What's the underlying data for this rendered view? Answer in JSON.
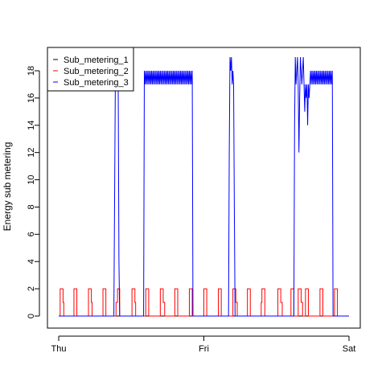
{
  "chart_data": {
    "type": "line",
    "title": "",
    "xlabel": "",
    "ylabel": "Energy sub metering",
    "x_ticks": [
      "Thu",
      "Fri",
      "Sat"
    ],
    "x_range_days": [
      0,
      2
    ],
    "ylim": [
      0,
      18
    ],
    "y_ticks": [
      0,
      2,
      4,
      6,
      8,
      10,
      12,
      14,
      16,
      18
    ],
    "grid": false,
    "legend_position": "top-left",
    "series": [
      {
        "name": "Sub_metering_1",
        "color": "#000000",
        "points": [
          [
            0,
            0
          ],
          [
            2,
            0
          ]
        ]
      },
      {
        "name": "Sub_metering_2",
        "color": "#ff0000",
        "points": [
          [
            0.0,
            0
          ],
          [
            0.01,
            0
          ],
          [
            0.01,
            2
          ],
          [
            0.03,
            2
          ],
          [
            0.03,
            1
          ],
          [
            0.035,
            1
          ],
          [
            0.035,
            0
          ],
          [
            0.105,
            0
          ],
          [
            0.105,
            2
          ],
          [
            0.125,
            2
          ],
          [
            0.125,
            0
          ],
          [
            0.205,
            0
          ],
          [
            0.205,
            2
          ],
          [
            0.225,
            2
          ],
          [
            0.225,
            1
          ],
          [
            0.23,
            1
          ],
          [
            0.23,
            0
          ],
          [
            0.305,
            0
          ],
          [
            0.305,
            2
          ],
          [
            0.325,
            2
          ],
          [
            0.325,
            0
          ],
          [
            0.395,
            0
          ],
          [
            0.395,
            1
          ],
          [
            0.405,
            1
          ],
          [
            0.405,
            2
          ],
          [
            0.42,
            2
          ],
          [
            0.42,
            0
          ],
          [
            0.505,
            0
          ],
          [
            0.505,
            2
          ],
          [
            0.525,
            2
          ],
          [
            0.525,
            1
          ],
          [
            0.53,
            1
          ],
          [
            0.53,
            0
          ],
          [
            0.6,
            0
          ],
          [
            0.6,
            2
          ],
          [
            0.62,
            2
          ],
          [
            0.62,
            0
          ],
          [
            0.7,
            0
          ],
          [
            0.7,
            2
          ],
          [
            0.72,
            2
          ],
          [
            0.72,
            1
          ],
          [
            0.73,
            1
          ],
          [
            0.73,
            0
          ],
          [
            0.8,
            0
          ],
          [
            0.8,
            2
          ],
          [
            0.82,
            2
          ],
          [
            0.82,
            0
          ],
          [
            0.9,
            0
          ],
          [
            0.9,
            2
          ],
          [
            0.92,
            2
          ],
          [
            0.92,
            0
          ],
          [
            1.0,
            0
          ],
          [
            1.0,
            2
          ],
          [
            1.02,
            2
          ],
          [
            1.02,
            0
          ],
          [
            1.1,
            0
          ],
          [
            1.1,
            2
          ],
          [
            1.12,
            2
          ],
          [
            1.12,
            0
          ],
          [
            1.2,
            0
          ],
          [
            1.2,
            2
          ],
          [
            1.22,
            2
          ],
          [
            1.22,
            1
          ],
          [
            1.23,
            1
          ],
          [
            1.23,
            0
          ],
          [
            1.3,
            0
          ],
          [
            1.3,
            2
          ],
          [
            1.32,
            2
          ],
          [
            1.32,
            0
          ],
          [
            1.395,
            0
          ],
          [
            1.395,
            1
          ],
          [
            1.4,
            1
          ],
          [
            1.4,
            2
          ],
          [
            1.42,
            2
          ],
          [
            1.42,
            0
          ],
          [
            1.51,
            0
          ],
          [
            1.51,
            2
          ],
          [
            1.53,
            2
          ],
          [
            1.53,
            1
          ],
          [
            1.54,
            1
          ],
          [
            1.54,
            0
          ],
          [
            1.6,
            0
          ],
          [
            1.6,
            2
          ],
          [
            1.62,
            2
          ],
          [
            1.62,
            0
          ],
          [
            1.65,
            0
          ],
          [
            1.65,
            2
          ],
          [
            1.67,
            2
          ],
          [
            1.67,
            1
          ],
          [
            1.68,
            1
          ],
          [
            1.68,
            0
          ],
          [
            1.7,
            0
          ],
          [
            1.7,
            2
          ],
          [
            1.72,
            2
          ],
          [
            1.72,
            0
          ],
          [
            1.8,
            0
          ],
          [
            1.8,
            2
          ],
          [
            1.82,
            2
          ],
          [
            1.82,
            0
          ],
          [
            1.9,
            0
          ],
          [
            1.9,
            2
          ],
          [
            1.92,
            2
          ],
          [
            1.92,
            0
          ],
          [
            2.0,
            0
          ]
        ]
      },
      {
        "name": "Sub_metering_3",
        "color": "#0000ff",
        "points": [
          [
            0.0,
            0
          ],
          [
            0.38,
            0
          ],
          [
            0.39,
            17
          ],
          [
            0.395,
            18
          ],
          [
            0.4,
            17
          ],
          [
            0.405,
            18
          ],
          [
            0.41,
            17
          ],
          [
            0.415,
            4
          ],
          [
            0.42,
            0
          ],
          [
            0.585,
            0
          ],
          [
            0.59,
            18
          ],
          [
            0.595,
            17
          ],
          [
            0.6,
            18
          ],
          [
            0.605,
            17
          ],
          [
            0.61,
            18
          ],
          [
            0.615,
            17
          ],
          [
            0.62,
            18
          ],
          [
            0.625,
            17
          ],
          [
            0.63,
            18
          ],
          [
            0.635,
            17
          ],
          [
            0.64,
            18
          ],
          [
            0.645,
            17
          ],
          [
            0.65,
            18
          ],
          [
            0.655,
            17
          ],
          [
            0.66,
            18
          ],
          [
            0.665,
            17
          ],
          [
            0.67,
            18
          ],
          [
            0.675,
            17
          ],
          [
            0.68,
            18
          ],
          [
            0.685,
            17
          ],
          [
            0.69,
            18
          ],
          [
            0.695,
            17
          ],
          [
            0.7,
            18
          ],
          [
            0.705,
            17
          ],
          [
            0.71,
            18
          ],
          [
            0.715,
            17
          ],
          [
            0.72,
            18
          ],
          [
            0.725,
            17
          ],
          [
            0.73,
            18
          ],
          [
            0.735,
            17
          ],
          [
            0.74,
            18
          ],
          [
            0.745,
            17
          ],
          [
            0.75,
            18
          ],
          [
            0.755,
            17
          ],
          [
            0.76,
            18
          ],
          [
            0.765,
            17
          ],
          [
            0.77,
            18
          ],
          [
            0.775,
            17
          ],
          [
            0.78,
            18
          ],
          [
            0.785,
            17
          ],
          [
            0.79,
            18
          ],
          [
            0.795,
            17
          ],
          [
            0.8,
            18
          ],
          [
            0.805,
            17
          ],
          [
            0.81,
            18
          ],
          [
            0.815,
            17
          ],
          [
            0.82,
            18
          ],
          [
            0.825,
            17
          ],
          [
            0.83,
            18
          ],
          [
            0.835,
            17
          ],
          [
            0.84,
            18
          ],
          [
            0.845,
            17
          ],
          [
            0.85,
            18
          ],
          [
            0.855,
            17
          ],
          [
            0.86,
            18
          ],
          [
            0.865,
            17
          ],
          [
            0.87,
            18
          ],
          [
            0.875,
            17
          ],
          [
            0.88,
            18
          ],
          [
            0.885,
            17
          ],
          [
            0.89,
            18
          ],
          [
            0.895,
            17
          ],
          [
            0.9,
            18
          ],
          [
            0.905,
            17
          ],
          [
            0.91,
            18
          ],
          [
            0.915,
            17
          ],
          [
            0.92,
            18
          ],
          [
            0.925,
            0
          ],
          [
            1.17,
            0
          ],
          [
            1.175,
            12
          ],
          [
            1.18,
            19
          ],
          [
            1.185,
            18
          ],
          [
            1.19,
            19
          ],
          [
            1.195,
            17
          ],
          [
            1.2,
            18
          ],
          [
            1.205,
            17
          ],
          [
            1.21,
            8
          ],
          [
            1.215,
            0
          ],
          [
            1.62,
            0
          ],
          [
            1.625,
            14
          ],
          [
            1.63,
            19
          ],
          [
            1.635,
            17
          ],
          [
            1.64,
            18
          ],
          [
            1.645,
            19
          ],
          [
            1.65,
            17
          ],
          [
            1.655,
            12
          ],
          [
            1.66,
            16
          ],
          [
            1.665,
            19
          ],
          [
            1.67,
            18
          ],
          [
            1.675,
            17
          ],
          [
            1.68,
            18
          ],
          [
            1.685,
            19
          ],
          [
            1.69,
            17
          ],
          [
            1.695,
            15
          ],
          [
            1.7,
            17
          ],
          [
            1.705,
            16
          ],
          [
            1.71,
            17
          ],
          [
            1.715,
            14
          ],
          [
            1.72,
            17
          ],
          [
            1.725,
            16
          ],
          [
            1.73,
            17
          ],
          [
            1.735,
            18
          ],
          [
            1.74,
            17
          ],
          [
            1.745,
            18
          ],
          [
            1.75,
            17
          ],
          [
            1.755,
            18
          ],
          [
            1.76,
            17
          ],
          [
            1.765,
            18
          ],
          [
            1.77,
            17
          ],
          [
            1.775,
            18
          ],
          [
            1.78,
            17
          ],
          [
            1.785,
            18
          ],
          [
            1.79,
            17
          ],
          [
            1.795,
            18
          ],
          [
            1.8,
            17
          ],
          [
            1.805,
            18
          ],
          [
            1.81,
            17
          ],
          [
            1.815,
            18
          ],
          [
            1.82,
            17
          ],
          [
            1.825,
            18
          ],
          [
            1.83,
            17
          ],
          [
            1.835,
            18
          ],
          [
            1.84,
            17
          ],
          [
            1.845,
            18
          ],
          [
            1.85,
            17
          ],
          [
            1.855,
            18
          ],
          [
            1.86,
            17
          ],
          [
            1.865,
            18
          ],
          [
            1.87,
            17
          ],
          [
            1.875,
            18
          ],
          [
            1.88,
            17
          ],
          [
            1.885,
            18
          ],
          [
            1.89,
            0
          ],
          [
            2.0,
            0
          ]
        ]
      }
    ]
  }
}
